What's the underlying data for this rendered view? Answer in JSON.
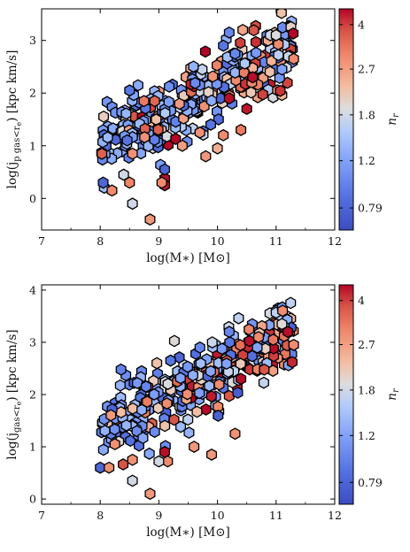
{
  "chart_data": [
    {
      "type": "scatter",
      "xlabel": "log(M∗) [M⊙]",
      "ylabel": "log(j_p gas<r_e) [kpc km/s]",
      "ylabel_base": "log(j",
      "ylabel_sub": "p gas<r",
      "ylabel_subsub": "e",
      "ylabel_tail": ") [kpc km/s]",
      "xlim": [
        7,
        12
      ],
      "ylim": [
        -0.6,
        3.6
      ],
      "xticks": [
        "7",
        "8",
        "9",
        "10",
        "11",
        "12"
      ],
      "yticks": [
        "0",
        "1",
        "2",
        "3"
      ],
      "xtick_values": [
        7,
        8,
        9,
        10,
        11,
        12
      ],
      "ytick_values": [
        0,
        1,
        2,
        3
      ],
      "colorbar_label": "n_r",
      "colorbar_ticks": [
        "0.79",
        "1.2",
        "1.8",
        "2.7",
        "4"
      ],
      "color_range": [
        0.65,
        4.6
      ],
      "seed": 12345,
      "points_note": "",
      "points": [
        [
          8.05,
          0.3,
          0.8
        ],
        [
          8.2,
          0.15,
          3.0
        ],
        [
          8.5,
          0.3,
          3.1
        ],
        [
          8.55,
          -0.1,
          1.8
        ],
        [
          8.85,
          -0.4,
          2.8
        ],
        [
          9.1,
          0.38,
          4.5
        ],
        [
          9.1,
          0.25,
          4.4
        ],
        [
          9.05,
          0.3,
          3.0
        ],
        [
          8.4,
          0.45,
          1.8
        ],
        [
          8.55,
          0.85,
          2.9
        ],
        [
          9.1,
          0.55,
          0.8
        ],
        [
          8.5,
          2.05,
          0.9
        ],
        [
          10.1,
          2.9,
          0.9
        ],
        [
          10.3,
          2.75,
          1.0
        ],
        [
          10.9,
          3.1,
          1.8
        ],
        [
          11.0,
          3.1,
          1.9
        ],
        [
          11.3,
          2.65,
          3.0
        ],
        [
          10.6,
          2.3,
          4.5
        ],
        [
          10.5,
          1.7,
          4.4
        ],
        [
          10.2,
          1.9,
          4.5
        ],
        [
          9.8,
          0.8,
          2.8
        ],
        [
          10.1,
          1.2,
          3.0
        ],
        [
          10.0,
          0.95,
          2.5
        ],
        [
          10.4,
          1.3,
          3.2
        ],
        [
          9.7,
          1.25,
          2.9
        ],
        [
          9.4,
          1.0,
          2.7
        ],
        [
          11.1,
          2.45,
          1.2
        ],
        [
          10.2,
          3.15,
          1.0
        ]
      ]
    },
    {
      "type": "scatter",
      "xlabel": "log(M∗) [M⊙]",
      "ylabel": "log(j_gas<r_e) [kpc km/s]",
      "ylabel_base": "log(j",
      "ylabel_sub": "gas<r",
      "ylabel_subsub": "e",
      "ylabel_tail": ") [kpc km/s]",
      "xlim": [
        7,
        12
      ],
      "ylim": [
        -0.1,
        4.1
      ],
      "xticks": [
        "7",
        "8",
        "9",
        "10",
        "11",
        "12"
      ],
      "yticks": [
        "0",
        "1",
        "2",
        "3",
        "4"
      ],
      "xtick_values": [
        7,
        8,
        9,
        10,
        11,
        12
      ],
      "ytick_values": [
        0,
        1,
        2,
        3,
        4
      ],
      "colorbar_label": "n_r",
      "colorbar_ticks": [
        "0.79",
        "1.2",
        "1.8",
        "2.7",
        "4"
      ],
      "color_range": [
        0.65,
        4.6
      ],
      "seed": 67890,
      "points_note": "",
      "points": [
        [
          8.0,
          0.6,
          0.8
        ],
        [
          8.15,
          0.6,
          2.9
        ],
        [
          8.55,
          0.35,
          1.8
        ],
        [
          8.85,
          0.1,
          2.8
        ],
        [
          9.1,
          0.9,
          4.5
        ],
        [
          9.15,
          0.72,
          3.0
        ],
        [
          9.0,
          0.72,
          1.8
        ],
        [
          8.55,
          0.75,
          2.9
        ],
        [
          8.25,
          1.05,
          2.9
        ],
        [
          9.9,
          0.85,
          2.8
        ],
        [
          9.6,
          1.0,
          2.8
        ],
        [
          10.3,
          1.25,
          2.9
        ],
        [
          11.1,
          3.35,
          1.9
        ],
        [
          11.2,
          3.2,
          4.5
        ],
        [
          10.7,
          3.1,
          3.0
        ],
        [
          11.3,
          2.95,
          3.0
        ],
        [
          10.4,
          2.3,
          4.5
        ],
        [
          9.7,
          2.9,
          1.0
        ],
        [
          10.2,
          3.2,
          1.0
        ],
        [
          9.2,
          2.65,
          0.9
        ],
        [
          10.95,
          3.05,
          3.3
        ]
      ]
    }
  ]
}
